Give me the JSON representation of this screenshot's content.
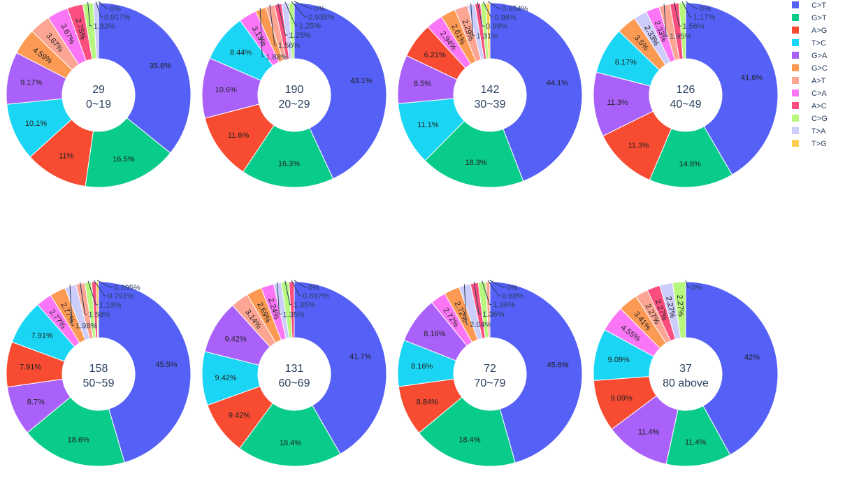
{
  "chart_data": {
    "type": "pie",
    "hole": true,
    "legend": {
      "placement": "top-right",
      "entries": [
        {
          "label": "C>T",
          "color": "#5460f6"
        },
        {
          "label": "G>T",
          "color": "#09cb8a"
        },
        {
          "label": "A>G",
          "color": "#f74b32"
        },
        {
          "label": "T>C",
          "color": "#1ad6f4"
        },
        {
          "label": "G>A",
          "color": "#aa61fa"
        },
        {
          "label": "G>C",
          "color": "#fc9a53"
        },
        {
          "label": "A>T",
          "color": "#fca592"
        },
        {
          "label": "C>A",
          "color": "#fb76f7"
        },
        {
          "label": "A>C",
          "color": "#fa4f7e"
        },
        {
          "label": "C>G",
          "color": "#b6f77e"
        },
        {
          "label": "T>A",
          "color": "#cccdfa"
        },
        {
          "label": "T>G",
          "color": "#fcce52"
        }
      ]
    },
    "charts": [
      {
        "count": "29",
        "group": "0~19",
        "slices": [
          {
            "cat": "C>T",
            "value": 35.8,
            "label": "35.8%"
          },
          {
            "cat": "G>T",
            "value": 16.5,
            "label": "16.5%"
          },
          {
            "cat": "A>G",
            "value": 11,
            "label": "11%"
          },
          {
            "cat": "T>C",
            "value": 10.1,
            "label": "10.1%"
          },
          {
            "cat": "G>A",
            "value": 9.17,
            "label": "9.17%"
          },
          {
            "cat": "G>C",
            "value": 4.59,
            "label": "4.59%"
          },
          {
            "cat": "A>T",
            "value": 3.67,
            "label": "3.67%"
          },
          {
            "cat": "C>A",
            "value": 3.67,
            "label": "3.67%"
          },
          {
            "cat": "A>C",
            "value": 2.75,
            "label": "2.75%"
          },
          {
            "cat": "C>G",
            "value": 1.83,
            "label": "1.83%"
          },
          {
            "cat": "T>A",
            "value": 0.917,
            "label": "0.917%"
          },
          {
            "cat": "T>G",
            "value": 0,
            "label": "0%"
          }
        ]
      },
      {
        "count": "190",
        "group": "20~29",
        "slices": [
          {
            "cat": "C>T",
            "value": 43.1,
            "label": "43.1%"
          },
          {
            "cat": "G>T",
            "value": 16.3,
            "label": "16.3%"
          },
          {
            "cat": "A>G",
            "value": 11.6,
            "label": "11.6%"
          },
          {
            "cat": "G>A",
            "value": 10.6,
            "label": "10.6%"
          },
          {
            "cat": "T>C",
            "value": 8.44,
            "label": "8.44%"
          },
          {
            "cat": "C>A",
            "value": 3.13,
            "label": "3.13%"
          },
          {
            "cat": "G>C",
            "value": 1.88,
            "label": "1.88%"
          },
          {
            "cat": "A>T",
            "value": 1.56,
            "label": "1.56%"
          },
          {
            "cat": "A>C",
            "value": 1.25,
            "label": "1.25%"
          },
          {
            "cat": "T>A",
            "value": 1.25,
            "label": "1.25%"
          },
          {
            "cat": "C>G",
            "value": 0.938,
            "label": "0.938%"
          },
          {
            "cat": "T>G",
            "value": 0,
            "label": "0%"
          }
        ]
      },
      {
        "count": "142",
        "group": "30~39",
        "slices": [
          {
            "cat": "C>T",
            "value": 44.1,
            "label": "44.1%"
          },
          {
            "cat": "G>T",
            "value": 18.3,
            "label": "18.3%"
          },
          {
            "cat": "T>C",
            "value": 11.1,
            "label": "11.1%"
          },
          {
            "cat": "G>A",
            "value": 8.5,
            "label": "8.5%"
          },
          {
            "cat": "A>G",
            "value": 6.21,
            "label": "6.21%"
          },
          {
            "cat": "C>A",
            "value": 2.94,
            "label": "2.94%"
          },
          {
            "cat": "G>C",
            "value": 2.61,
            "label": "2.61%"
          },
          {
            "cat": "A>T",
            "value": 2.29,
            "label": "2.29%"
          },
          {
            "cat": "T>A",
            "value": 1.31,
            "label": "1.31%"
          },
          {
            "cat": "A>C",
            "value": 0.98,
            "label": "0.98%"
          },
          {
            "cat": "C>G",
            "value": 0.98,
            "label": "0.98%"
          },
          {
            "cat": "T>G",
            "value": 0.654,
            "label": "0.654%"
          }
        ]
      },
      {
        "count": "126",
        "group": "40~49",
        "slices": [
          {
            "cat": "C>T",
            "value": 41.6,
            "label": "41.6%"
          },
          {
            "cat": "G>T",
            "value": 14.8,
            "label": "14.8%"
          },
          {
            "cat": "A>G",
            "value": 11.3,
            "label": "11.3%"
          },
          {
            "cat": "G>A",
            "value": 11.3,
            "label": "11.3%"
          },
          {
            "cat": "T>C",
            "value": 8.17,
            "label": "8.17%"
          },
          {
            "cat": "G>C",
            "value": 3.5,
            "label": "3.5%"
          },
          {
            "cat": "T>A",
            "value": 2.33,
            "label": "2.33%"
          },
          {
            "cat": "C>A",
            "value": 2.33,
            "label": "2.33%"
          },
          {
            "cat": "A>T",
            "value": 1.95,
            "label": "1.95%"
          },
          {
            "cat": "A>C",
            "value": 1.56,
            "label": "1.56%"
          },
          {
            "cat": "C>G",
            "value": 1.17,
            "label": "1.17%"
          },
          {
            "cat": "T>G",
            "value": 0,
            "label": "0%"
          }
        ]
      },
      {
        "count": "158",
        "group": "50~59",
        "slices": [
          {
            "cat": "C>T",
            "value": 45.5,
            "label": "45.5%"
          },
          {
            "cat": "G>T",
            "value": 18.6,
            "label": "18.6%"
          },
          {
            "cat": "G>A",
            "value": 8.7,
            "label": "8.7%"
          },
          {
            "cat": "A>G",
            "value": 7.91,
            "label": "7.91%"
          },
          {
            "cat": "T>C",
            "value": 7.91,
            "label": "7.91%"
          },
          {
            "cat": "C>A",
            "value": 2.77,
            "label": "2.77%"
          },
          {
            "cat": "G>C",
            "value": 2.77,
            "label": "2.77%"
          },
          {
            "cat": "T>A",
            "value": 1.98,
            "label": "1.98%"
          },
          {
            "cat": "A>T",
            "value": 1.58,
            "label": "1.58%"
          },
          {
            "cat": "C>G",
            "value": 1.19,
            "label": "1.19%"
          },
          {
            "cat": "A>C",
            "value": 0.791,
            "label": "0.791%"
          },
          {
            "cat": "T>G",
            "value": 0.395,
            "label": "0.395%"
          }
        ]
      },
      {
        "count": "131",
        "group": "60~69",
        "slices": [
          {
            "cat": "C>T",
            "value": 41.7,
            "label": "41.7%"
          },
          {
            "cat": "G>T",
            "value": 18.4,
            "label": "18.4%"
          },
          {
            "cat": "A>G",
            "value": 9.42,
            "label": "9.42%"
          },
          {
            "cat": "T>C",
            "value": 9.42,
            "label": "9.42%"
          },
          {
            "cat": "G>A",
            "value": 9.42,
            "label": "9.42%"
          },
          {
            "cat": "A>T",
            "value": 3.14,
            "label": "3.14%"
          },
          {
            "cat": "G>C",
            "value": 2.69,
            "label": "2.69%"
          },
          {
            "cat": "C>A",
            "value": 2.24,
            "label": "2.24%"
          },
          {
            "cat": "T>A",
            "value": 1.35,
            "label": "1.35%"
          },
          {
            "cat": "C>G",
            "value": 1.35,
            "label": "1.35%"
          },
          {
            "cat": "A>C",
            "value": 0.897,
            "label": "0.897%"
          },
          {
            "cat": "T>G",
            "value": 0,
            "label": "0%"
          }
        ]
      },
      {
        "count": "72",
        "group": "70~79",
        "slices": [
          {
            "cat": "C>T",
            "value": 45.6,
            "label": "45.6%"
          },
          {
            "cat": "G>T",
            "value": 18.4,
            "label": "18.4%"
          },
          {
            "cat": "A>G",
            "value": 8.84,
            "label": "8.84%"
          },
          {
            "cat": "T>C",
            "value": 8.16,
            "label": "8.16%"
          },
          {
            "cat": "G>A",
            "value": 8.16,
            "label": "8.16%"
          },
          {
            "cat": "C>A",
            "value": 2.72,
            "label": "2.72%"
          },
          {
            "cat": "G>C",
            "value": 2.72,
            "label": "2.72%"
          },
          {
            "cat": "T>A",
            "value": 2.04,
            "label": "2.04%"
          },
          {
            "cat": "A>C",
            "value": 1.36,
            "label": "1.36%"
          },
          {
            "cat": "C>G",
            "value": 1.36,
            "label": "1.36%"
          },
          {
            "cat": "A>T",
            "value": 0.68,
            "label": "0.68%"
          },
          {
            "cat": "T>G",
            "value": 0,
            "label": "0%"
          }
        ]
      },
      {
        "count": "37",
        "group": "80 above",
        "slices": [
          {
            "cat": "C>T",
            "value": 42,
            "label": "42%"
          },
          {
            "cat": "G>T",
            "value": 11.4,
            "label": "11.4%"
          },
          {
            "cat": "G>A",
            "value": 11.4,
            "label": "11.4%"
          },
          {
            "cat": "A>G",
            "value": 9.09,
            "label": "9.09%"
          },
          {
            "cat": "T>C",
            "value": 9.09,
            "label": "9.09%"
          },
          {
            "cat": "C>A",
            "value": 4.55,
            "label": "4.55%"
          },
          {
            "cat": "G>C",
            "value": 3.41,
            "label": "3.41%"
          },
          {
            "cat": "A>T",
            "value": 2.27,
            "label": "2.27%"
          },
          {
            "cat": "A>C",
            "value": 2.27,
            "label": "2.27%"
          },
          {
            "cat": "T>A",
            "value": 2.27,
            "label": "2.27%"
          },
          {
            "cat": "C>G",
            "value": 2.27,
            "label": "2.27%"
          },
          {
            "cat": "T>G",
            "value": 0,
            "label": "0%"
          }
        ]
      }
    ]
  }
}
